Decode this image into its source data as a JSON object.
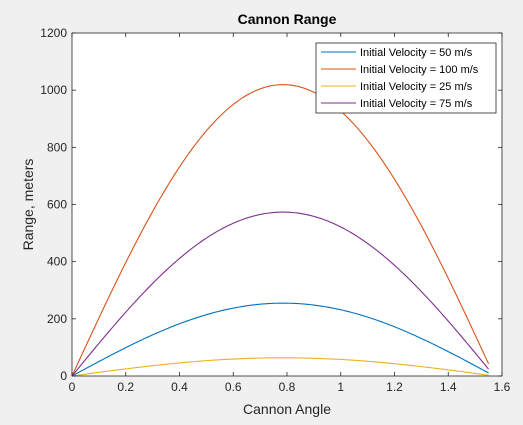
{
  "chart_data": {
    "type": "line",
    "title": "Cannon Range",
    "xlabel": "Cannon Angle",
    "ylabel": "Range, meters",
    "xlim": [
      0,
      1.6
    ],
    "ylim": [
      0,
      1200
    ],
    "x_ticks": [
      "0",
      "0.2",
      "0.4",
      "0.6",
      "0.8",
      "1",
      "1.2",
      "1.4",
      "1.6"
    ],
    "y_ticks": [
      "0",
      "200",
      "400",
      "600",
      "800",
      "1000",
      "1200"
    ],
    "grid": false,
    "legend_position": "top-right",
    "x_data_range": [
      0,
      1.55
    ],
    "gravity": 9.81,
    "series": [
      {
        "name": "Initial Velocity = 50 m/s",
        "velocity": 50,
        "color": "#0072bd"
      },
      {
        "name": "Initial Velocity = 100 m/s",
        "velocity": 100,
        "color": "#d95319"
      },
      {
        "name": "Initial Velocity = 25 m/s",
        "velocity": 25,
        "color": "#edb120"
      },
      {
        "name": "Initial Velocity = 75 m/s",
        "velocity": 75,
        "color": "#7e2f8e"
      }
    ]
  }
}
